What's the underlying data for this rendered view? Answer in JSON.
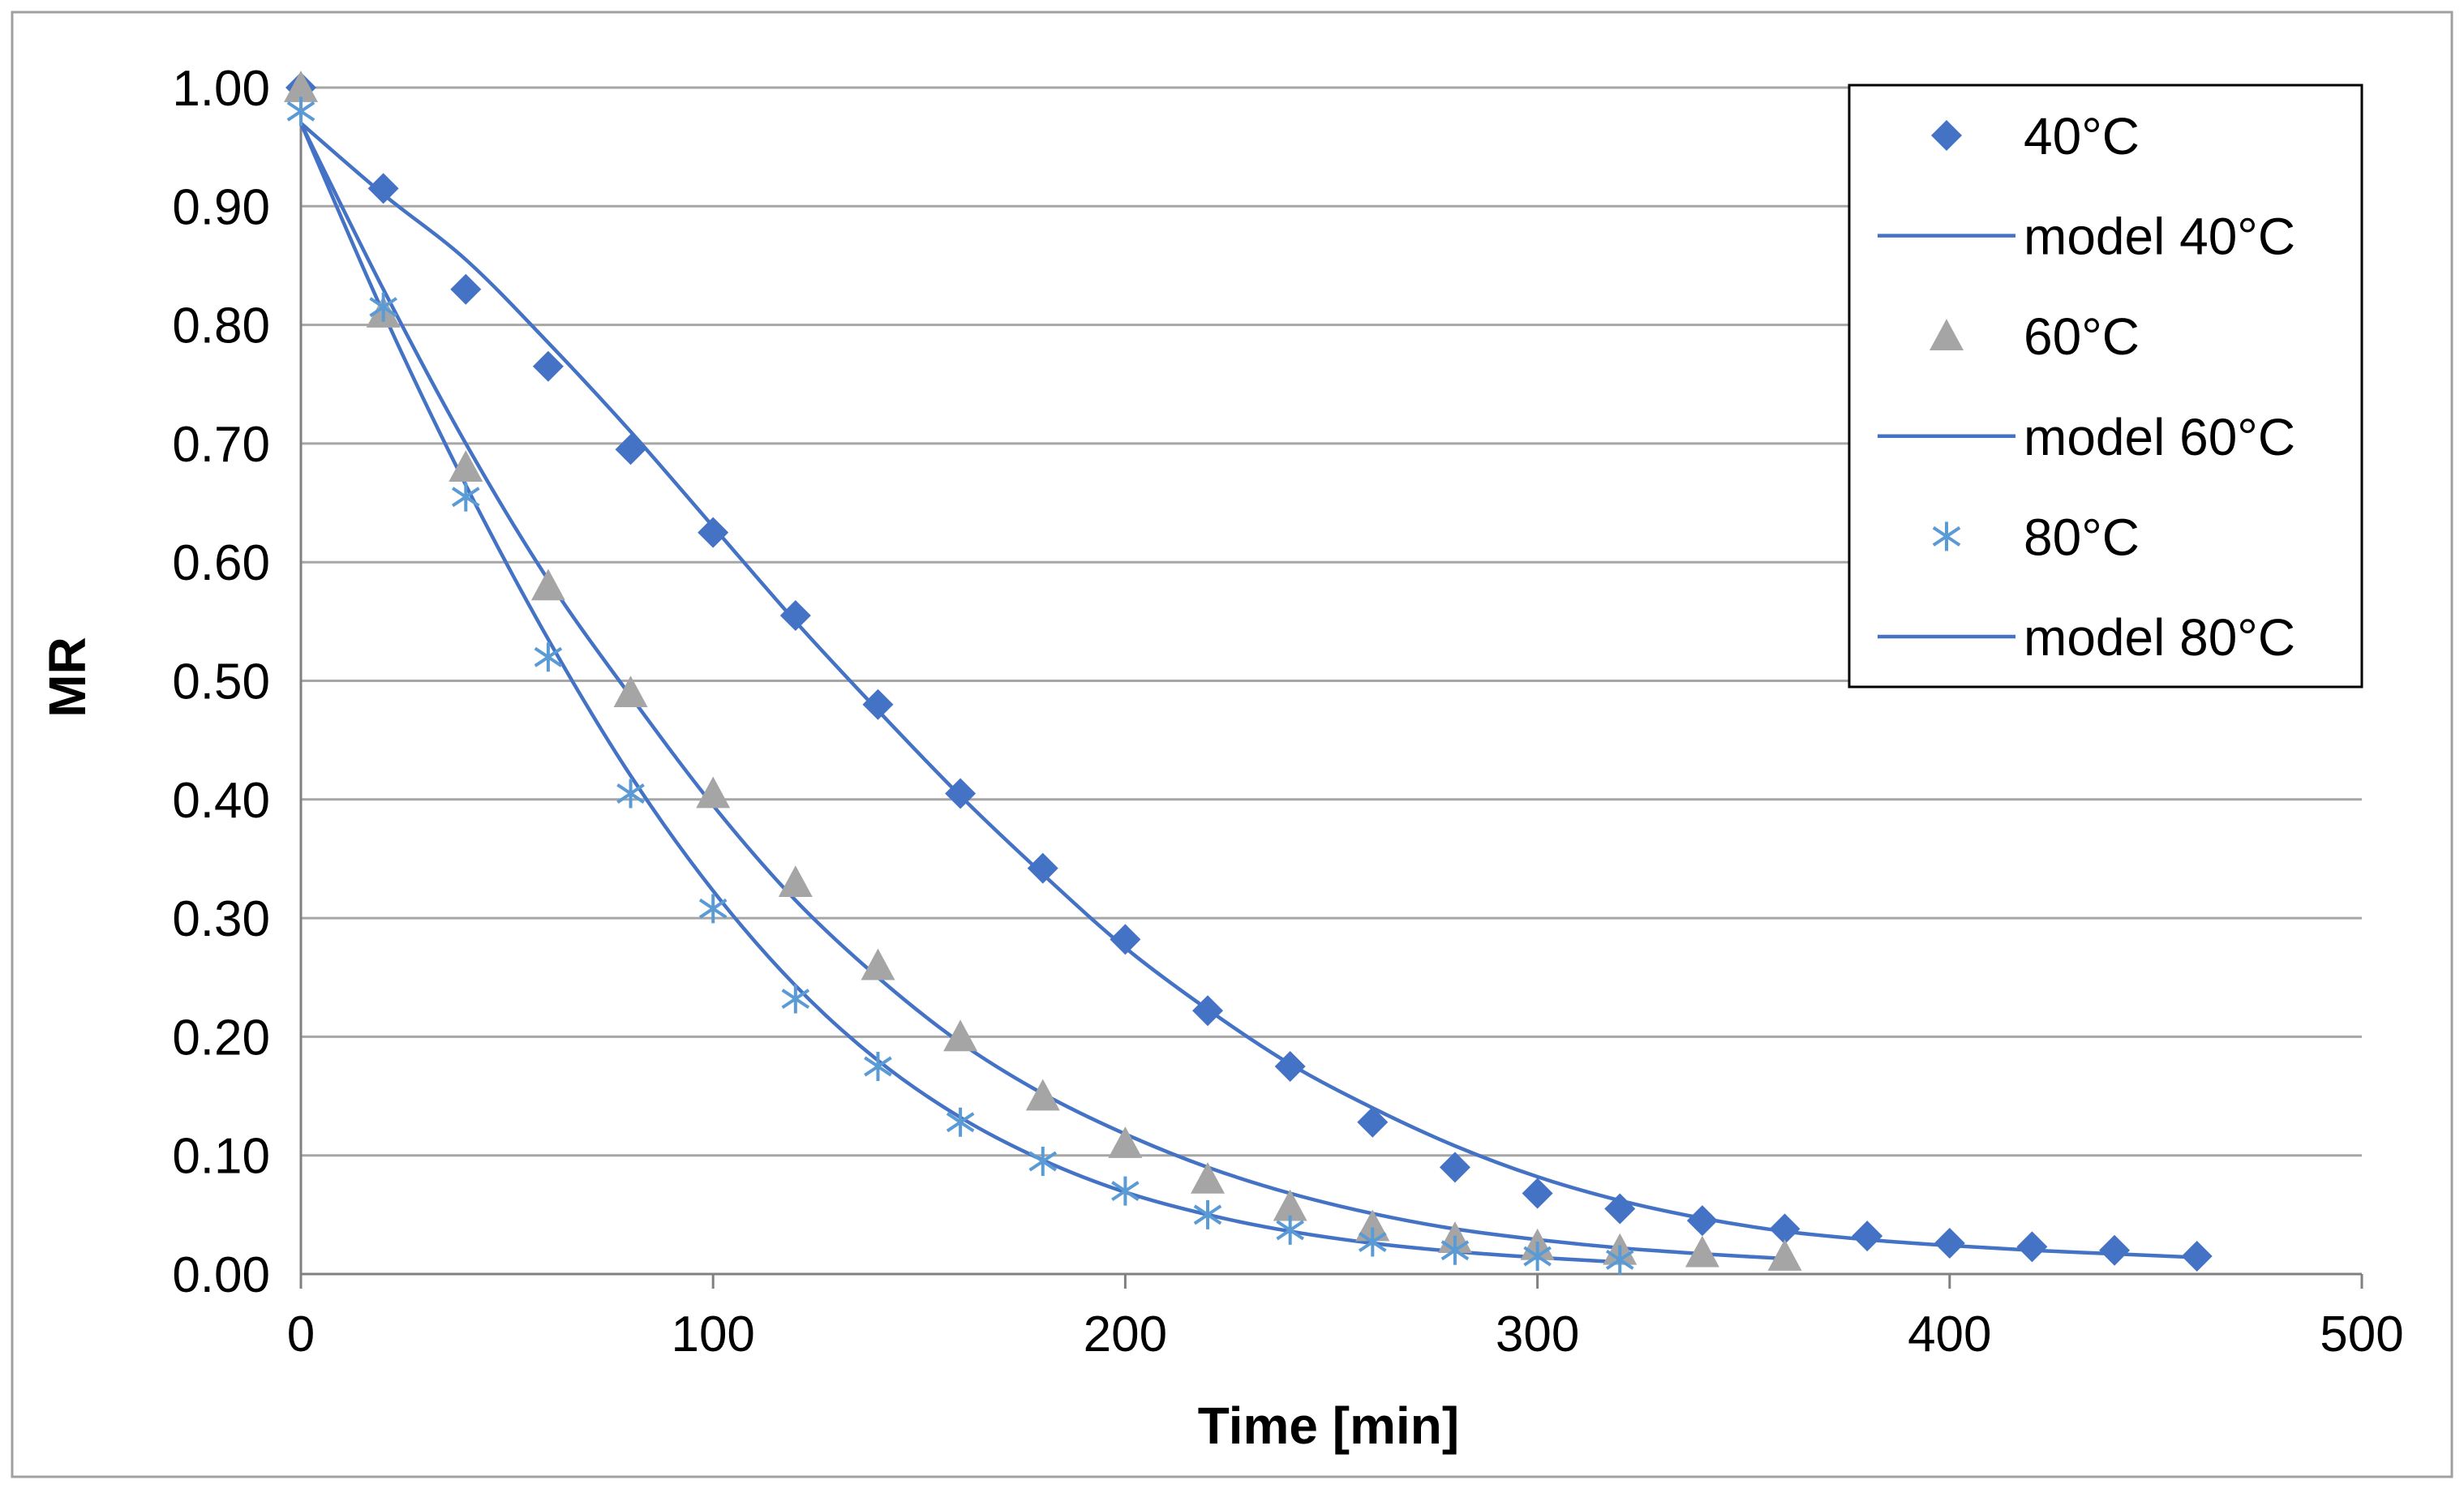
{
  "chart_data": {
    "type": "scatter",
    "title": "",
    "xlabel": "Time [min]",
    "ylabel": "MR",
    "xlim": [
      0,
      500
    ],
    "ylim": [
      0,
      1
    ],
    "x_ticks": [
      "0",
      "100",
      "200",
      "300",
      "400",
      "500"
    ],
    "y_ticks": [
      "0.00",
      "0.10",
      "0.20",
      "0.30",
      "0.40",
      "0.50",
      "0.60",
      "0.70",
      "0.80",
      "0.90",
      "1.00"
    ],
    "grid": "horizontal",
    "legend_position": "top-right",
    "series": [
      {
        "name": "40°C",
        "kind": "markers",
        "marker": "diamond",
        "color": "#4472C4",
        "x": [
          0,
          20,
          40,
          60,
          80,
          100,
          120,
          140,
          160,
          180,
          200,
          220,
          240,
          260,
          280,
          300,
          320,
          340,
          360,
          380,
          400,
          420,
          440,
          460
        ],
        "y": [
          1.0,
          0.915,
          0.83,
          0.765,
          0.695,
          0.625,
          0.555,
          0.48,
          0.405,
          0.342,
          0.282,
          0.222,
          0.175,
          0.128,
          0.09,
          0.068,
          0.055,
          0.045,
          0.038,
          0.032,
          0.026,
          0.023,
          0.02,
          0.015
        ]
      },
      {
        "name": "model 40°C",
        "kind": "line",
        "color": "#4472C4",
        "x": [
          0,
          20,
          40,
          60,
          80,
          100,
          120,
          140,
          160,
          180,
          200,
          220,
          240,
          260,
          280,
          300,
          320,
          340,
          360,
          380,
          400,
          420,
          440,
          460
        ],
        "y": [
          0.97,
          0.91,
          0.855,
          0.785,
          0.71,
          0.63,
          0.55,
          0.475,
          0.403,
          0.337,
          0.275,
          0.223,
          0.177,
          0.14,
          0.108,
          0.082,
          0.062,
          0.047,
          0.036,
          0.029,
          0.024,
          0.02,
          0.017,
          0.014
        ]
      },
      {
        "name": "60°C",
        "kind": "markers",
        "marker": "triangle",
        "color": "#A5A5A5",
        "x": [
          0,
          20,
          40,
          60,
          80,
          100,
          120,
          140,
          160,
          180,
          200,
          220,
          240,
          260,
          280,
          300,
          320,
          340,
          360
        ],
        "y": [
          1.0,
          0.81,
          0.68,
          0.58,
          0.49,
          0.405,
          0.33,
          0.26,
          0.2,
          0.15,
          0.11,
          0.08,
          0.057,
          0.04,
          0.03,
          0.024,
          0.02,
          0.018,
          0.015
        ]
      },
      {
        "name": "model 60°C",
        "kind": "line",
        "color": "#4472C4",
        "x": [
          0,
          20,
          40,
          60,
          80,
          100,
          120,
          140,
          160,
          180,
          200,
          220,
          240,
          260,
          280,
          300,
          320,
          340,
          360
        ],
        "y": [
          0.97,
          0.83,
          0.7,
          0.585,
          0.487,
          0.395,
          0.315,
          0.25,
          0.195,
          0.152,
          0.118,
          0.09,
          0.068,
          0.051,
          0.038,
          0.029,
          0.022,
          0.017,
          0.013
        ]
      },
      {
        "name": "80°C",
        "kind": "markers",
        "marker": "asterisk",
        "color": "#5B9BD5",
        "x": [
          0,
          20,
          40,
          60,
          80,
          100,
          120,
          140,
          160,
          180,
          200,
          220,
          240,
          260,
          280,
          300,
          320
        ],
        "y": [
          0.98,
          0.815,
          0.655,
          0.52,
          0.405,
          0.308,
          0.232,
          0.175,
          0.128,
          0.095,
          0.07,
          0.05,
          0.037,
          0.027,
          0.02,
          0.015,
          0.012
        ]
      },
      {
        "name": "model 80°C",
        "kind": "line",
        "color": "#4472C4",
        "x": [
          0,
          20,
          40,
          60,
          80,
          100,
          120,
          140,
          160,
          180,
          200,
          220,
          240,
          260,
          280,
          300,
          320
        ],
        "y": [
          0.97,
          0.81,
          0.665,
          0.535,
          0.42,
          0.323,
          0.243,
          0.18,
          0.132,
          0.096,
          0.069,
          0.05,
          0.036,
          0.026,
          0.019,
          0.014,
          0.01
        ]
      }
    ]
  }
}
